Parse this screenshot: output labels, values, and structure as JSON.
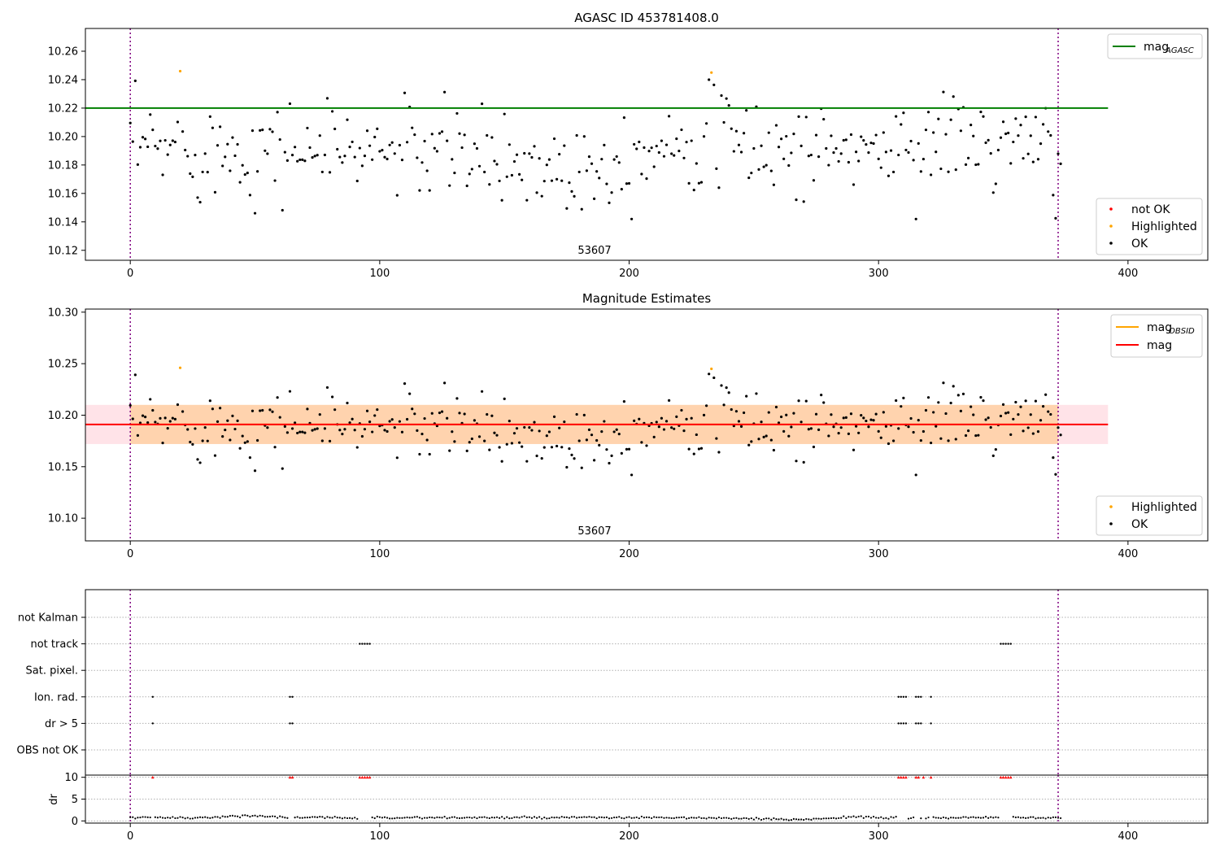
{
  "chart_data": [
    {
      "type": "scatter",
      "title": "AGASC ID 453781408.0",
      "xlim": [
        -18,
        432
      ],
      "ylim": [
        10.113,
        10.276
      ],
      "xticks": [
        0,
        100,
        200,
        300,
        400
      ],
      "yticks": [
        10.12,
        10.14,
        10.16,
        10.18,
        10.2,
        10.22,
        10.24,
        10.26
      ],
      "ytick_labels": [
        "10.12",
        "10.14",
        "10.16",
        "10.18",
        "10.20",
        "10.22",
        "10.24",
        "10.26"
      ],
      "vlines": [
        0,
        372
      ],
      "annotation": "53607",
      "hline": {
        "name": "mag",
        "sub": "AGASC",
        "y": 10.22,
        "color": "#008000",
        "x": [
          -18,
          392
        ]
      },
      "highlighted": {
        "x": [
          20,
          233
        ],
        "y": [
          10.246,
          10.245
        ]
      },
      "legend_top": [
        {
          "label": "mag",
          "sub": "AGASC",
          "color": "#008000"
        }
      ],
      "legend_bottom": [
        {
          "label": "not OK",
          "color": "#ff0000"
        },
        {
          "label": "Highlighted",
          "color": "#ffa500"
        },
        {
          "label": "OK",
          "color": "#000000"
        }
      ],
      "grid": false
    },
    {
      "type": "scatter",
      "title": "Magnitude Estimates",
      "xlim": [
        -18,
        432
      ],
      "ylim": [
        10.078,
        10.303
      ],
      "xticks": [
        0,
        100,
        200,
        300,
        400
      ],
      "yticks": [
        10.1,
        10.15,
        10.2,
        10.25,
        10.3
      ],
      "ytick_labels": [
        "10.10",
        "10.15",
        "10.20",
        "10.25",
        "10.30"
      ],
      "vlines": [
        0,
        372
      ],
      "annotation": "53607",
      "mag": 10.191,
      "band_inner": [
        10.172,
        10.21
      ],
      "band_outer": [
        10.172,
        10.21
      ],
      "band_x": [
        -18,
        392
      ],
      "highlighted": {
        "x": [
          20,
          233
        ],
        "y": [
          10.246,
          10.245
        ]
      },
      "legend_top": [
        {
          "label": "mag",
          "sub": "OBSID",
          "color": "#ffa500"
        },
        {
          "label": "mag",
          "sub": "",
          "color": "#ff0000"
        }
      ],
      "legend_bottom": [
        {
          "label": "Highlighted",
          "color": "#ffa500"
        },
        {
          "label": "OK",
          "color": "#000000"
        }
      ],
      "grid": false
    },
    {
      "type": "scatter",
      "xlim": [
        -18,
        432
      ],
      "xticks": [
        0,
        100,
        200,
        300,
        400
      ],
      "vlines": [
        0,
        372
      ],
      "flag_categories": [
        "not Kalman",
        "not track",
        "Sat. pixel.",
        "Ion. rad.",
        "dr > 5",
        "OBS not OK"
      ],
      "flags": {
        "not track": [
          92,
          93,
          94,
          95,
          96,
          349,
          350,
          351,
          352,
          353
        ],
        "Ion. rad.": [
          9,
          64,
          65,
          308,
          309,
          310,
          311,
          315,
          316,
          317,
          321
        ],
        "dr > 5": [
          9,
          64,
          65,
          308,
          309,
          310,
          311,
          315,
          316,
          317,
          321
        ]
      }
    },
    {
      "type": "scatter",
      "ylabel": "dr",
      "xlim": [
        -18,
        432
      ],
      "ylim": [
        -0.5,
        10.5
      ],
      "yticks": [
        0,
        5,
        10
      ],
      "xticks": [
        0,
        100,
        200,
        300,
        400
      ],
      "vlines": [
        0,
        372
      ],
      "clipped_x": [
        9,
        64,
        65,
        92,
        93,
        94,
        95,
        96,
        308,
        309,
        310,
        311,
        315,
        316,
        318,
        321,
        349,
        350,
        351,
        352,
        353
      ],
      "grid": true
    }
  ]
}
